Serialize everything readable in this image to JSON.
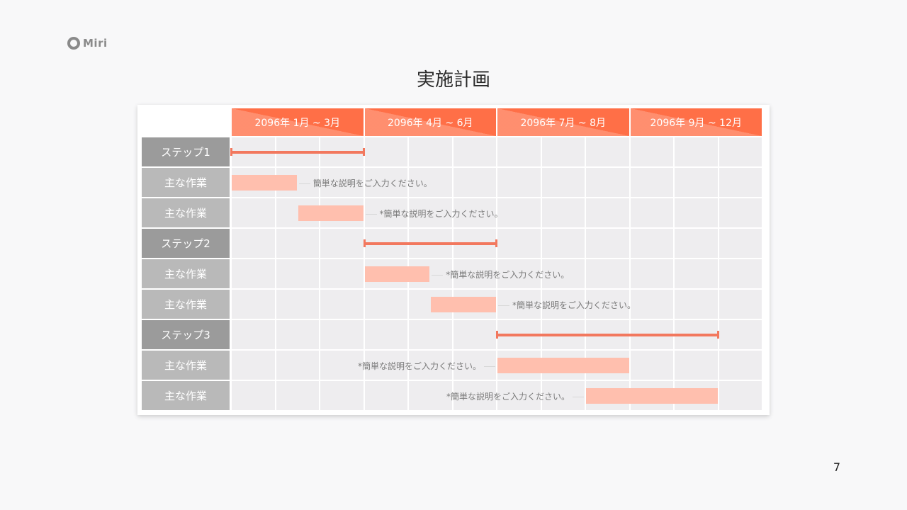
{
  "logo": {
    "text": "Miri"
  },
  "title": "実施計画",
  "page_number": "7",
  "colors": {
    "header": "#ff6f47",
    "step_label": "#9b9b9b",
    "task_label": "#b9b9b9",
    "bar": "#ffbfae",
    "line": "#f2785e",
    "cell": "#eeedef"
  },
  "gantt": {
    "periods": [
      {
        "label": "2096年 1月 ~ 3月",
        "start": "2096-01",
        "end": "2096-03"
      },
      {
        "label": "2096年 4月 ~ 6月",
        "start": "2096-04",
        "end": "2096-06"
      },
      {
        "label": "2096年 7月 ~ 8月",
        "start": "2096-07",
        "end": "2096-08"
      },
      {
        "label": "2096年 9月 ~ 12月",
        "start": "2096-09",
        "end": "2096-12"
      }
    ],
    "rows": [
      {
        "label": "ステップ1",
        "type": "step",
        "start": 0.0,
        "end": 3.0
      },
      {
        "label": "主な作業",
        "type": "task",
        "start": 0.0,
        "end": 1.5,
        "note": "簡単な説明をご入力ください。",
        "note_side": "right"
      },
      {
        "label": "主な作業",
        "type": "task",
        "start": 1.5,
        "end": 3.0,
        "note": "*簡単な説明をご入力ください。",
        "note_side": "right"
      },
      {
        "label": "ステップ2",
        "type": "step",
        "start": 3.0,
        "end": 6.0
      },
      {
        "label": "主な作業",
        "type": "task",
        "start": 3.0,
        "end": 4.5,
        "note": "*簡単な説明をご入力ください。",
        "note_side": "right"
      },
      {
        "label": "主な作業",
        "type": "task",
        "start": 4.5,
        "end": 6.0,
        "note": "*簡単な説明をご入力ください。",
        "note_side": "right"
      },
      {
        "label": "ステップ3",
        "type": "step",
        "start": 6.0,
        "end": 11.0
      },
      {
        "label": "主な作業",
        "type": "task",
        "start": 6.0,
        "end": 9.0,
        "note": "*簡単な説明をご入力ください。",
        "note_side": "left"
      },
      {
        "label": "主な作業",
        "type": "task",
        "start": 8.0,
        "end": 11.0,
        "note": "*簡単な説明をご入力ください。",
        "note_side": "left"
      }
    ]
  }
}
